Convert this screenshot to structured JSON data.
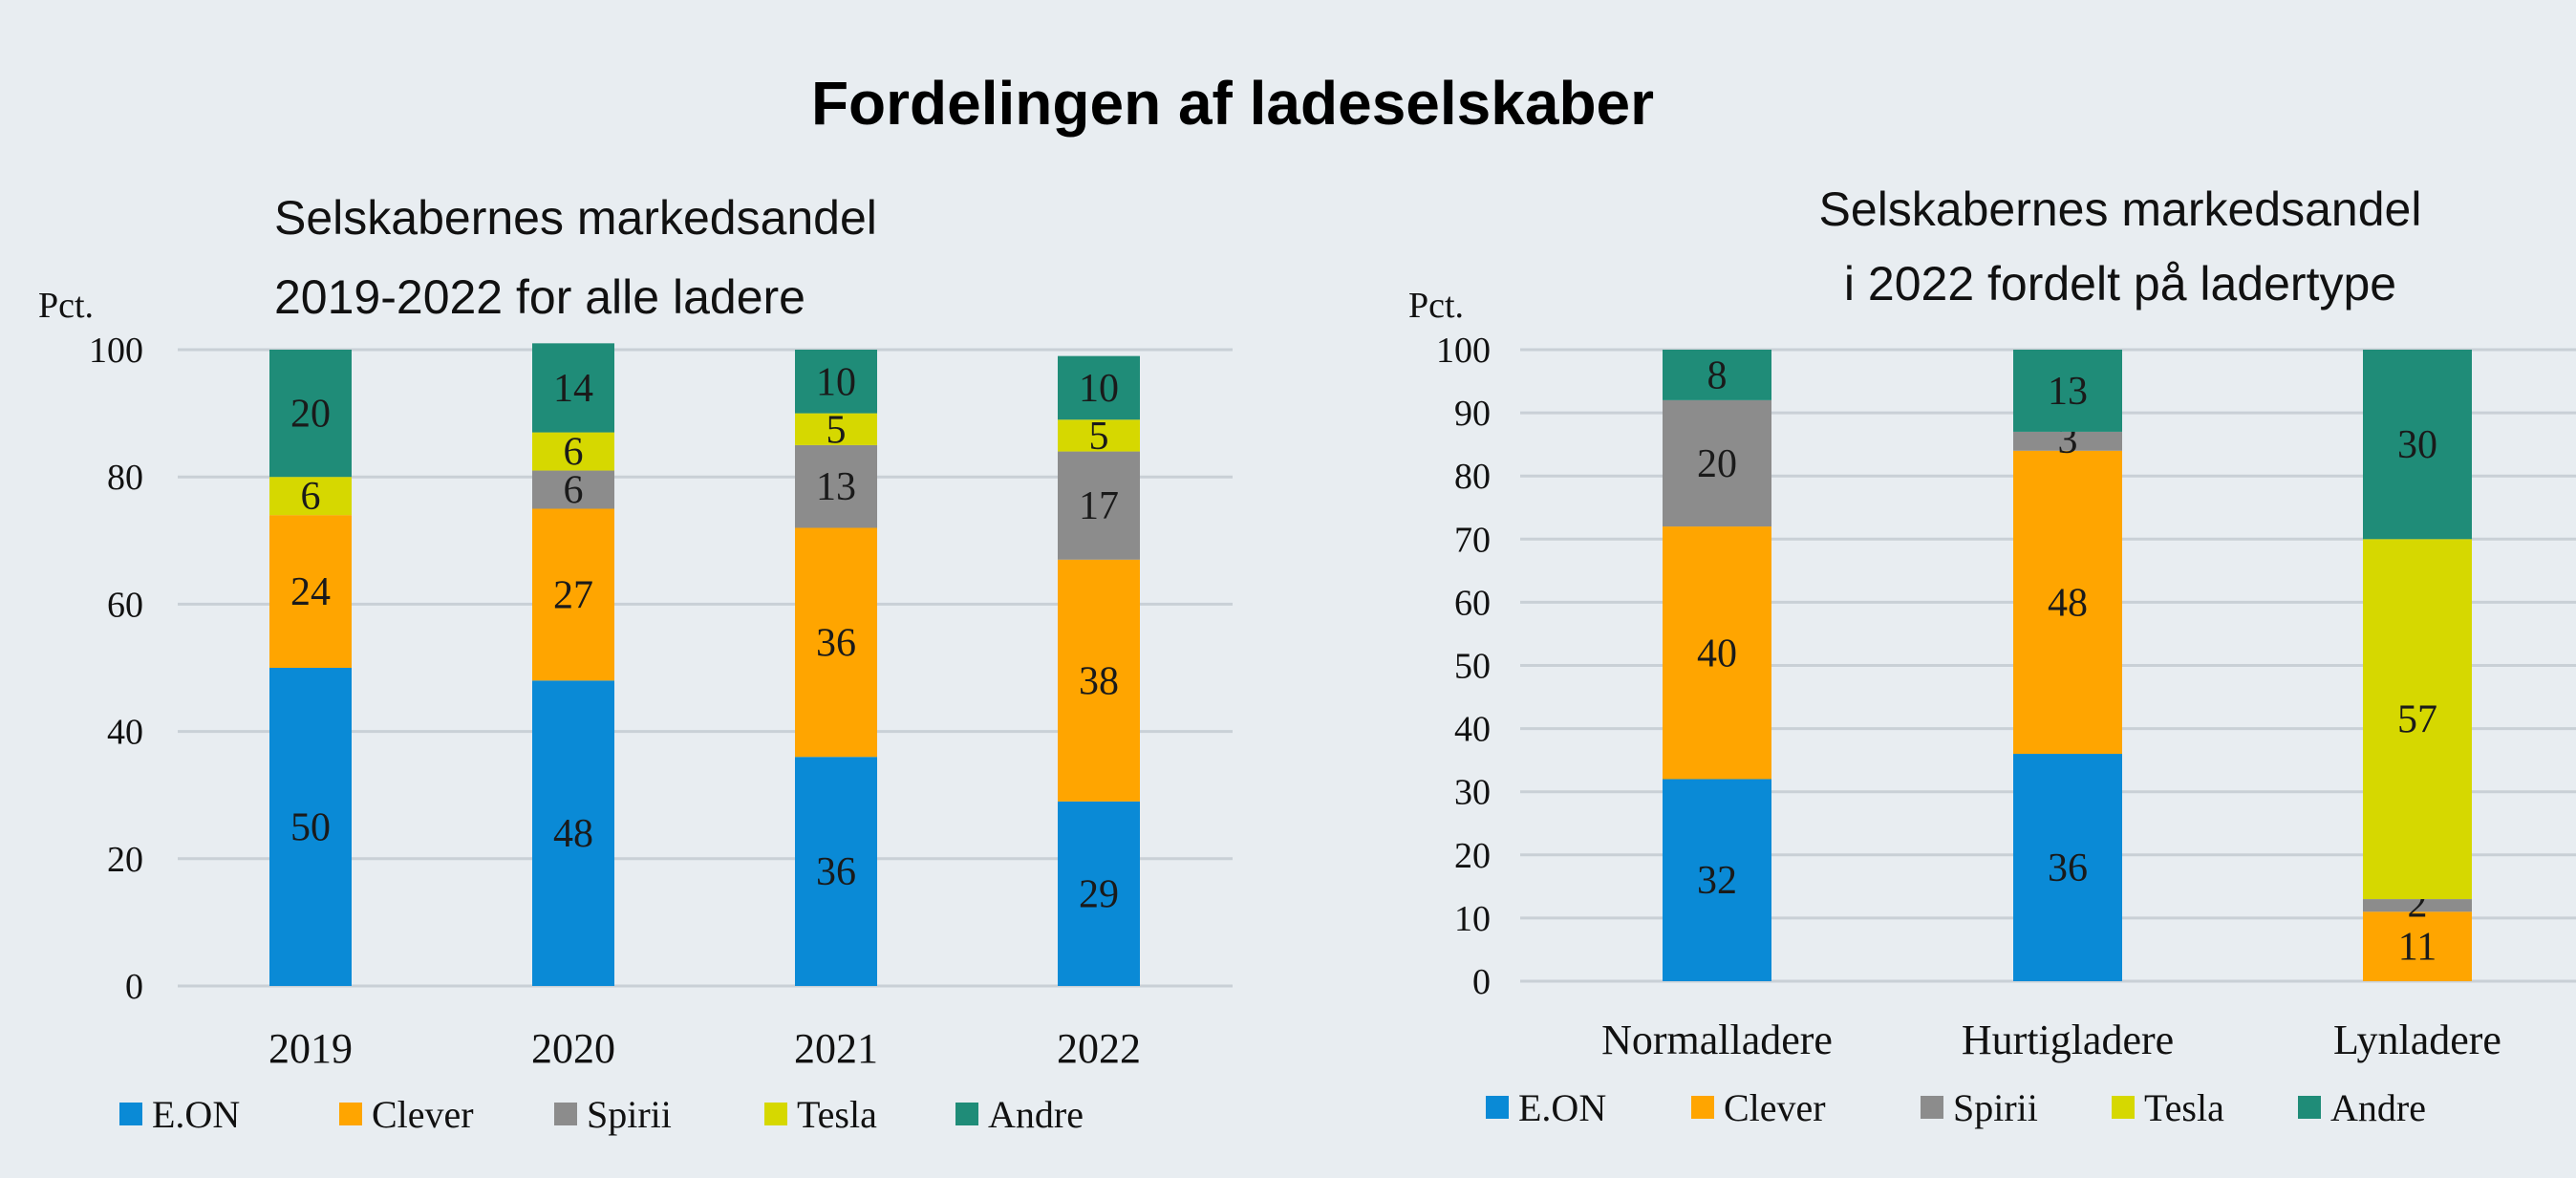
{
  "title": "Fordelingen af ladeselskaber",
  "colors": {
    "E.ON": "#0a8ad6",
    "Clever": "#ffa500",
    "Spirii": "#8c8c8c",
    "Tesla": "#d6d800",
    "Andre": "#1f8c78"
  },
  "chart_data": [
    {
      "type": "bar",
      "stacked": true,
      "title_lines": [
        "Selskabernes markedsandel",
        "2019-2022 for alle ladere"
      ],
      "ylabel": "Pct.",
      "ylim": [
        0,
        100
      ],
      "yticks": [
        "0",
        "20",
        "40",
        "60",
        "80",
        "100"
      ],
      "grid": true,
      "legend_position": "bottom",
      "categories": [
        "2019",
        "2020",
        "2021",
        "2022"
      ],
      "series": [
        {
          "name": "E.ON",
          "values": [
            50,
            48,
            36,
            29
          ]
        },
        {
          "name": "Clever",
          "values": [
            24,
            27,
            36,
            38
          ]
        },
        {
          "name": "Spirii",
          "values": [
            0,
            6,
            13,
            17
          ]
        },
        {
          "name": "Tesla",
          "values": [
            6,
            6,
            5,
            5
          ]
        },
        {
          "name": "Andre",
          "values": [
            20,
            14,
            10,
            10
          ]
        }
      ]
    },
    {
      "type": "bar",
      "stacked": true,
      "title_lines": [
        "Selskabernes markedsandel",
        "i 2022 fordelt på ladertype"
      ],
      "ylabel": "Pct.",
      "ylim": [
        0,
        100
      ],
      "yticks": [
        "0",
        "10",
        "20",
        "30",
        "40",
        "50",
        "60",
        "70",
        "80",
        "90",
        "100"
      ],
      "grid": true,
      "legend_position": "bottom",
      "categories": [
        "Normalladere",
        "Hurtigladere",
        "Lynladere"
      ],
      "series": [
        {
          "name": "E.ON",
          "values": [
            32,
            36,
            0
          ]
        },
        {
          "name": "Clever",
          "values": [
            40,
            48,
            11
          ]
        },
        {
          "name": "Spirii",
          "values": [
            20,
            3,
            2
          ]
        },
        {
          "name": "Tesla",
          "values": [
            0,
            0,
            57
          ]
        },
        {
          "name": "Andre",
          "values": [
            8,
            13,
            30
          ]
        }
      ]
    }
  ]
}
